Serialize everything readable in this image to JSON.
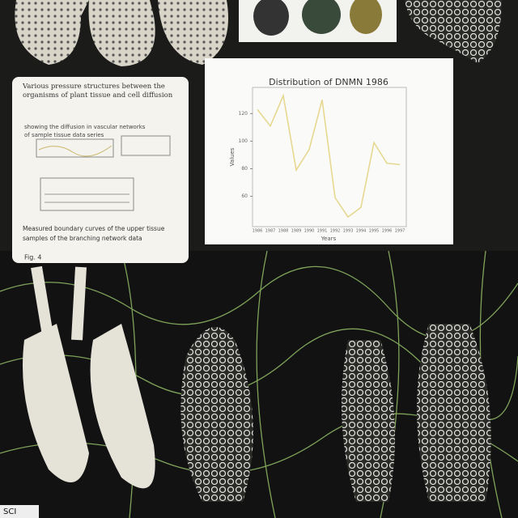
{
  "card": {
    "heading": "Various pressure structures between the organisms of plant tissue and cell diffusion",
    "lines": [
      "showing the diffusion in vascular networks",
      "of sample tissue data series"
    ],
    "footer": [
      "Measured boundary curves of the upper tissue",
      "samples of the branching network data"
    ],
    "caption": "Fig. 4"
  },
  "chart_data": {
    "type": "line",
    "title": "Distribution of DNMN 1986",
    "x_label": "Years",
    "y_label": "Values",
    "categories": [
      "1986",
      "1987",
      "1988",
      "1989",
      "1990",
      "1991",
      "1992",
      "1993",
      "1994",
      "1995",
      "1996",
      "1997"
    ],
    "series": [
      {
        "name": "Values",
        "color": "#e6d890",
        "values": [
          123,
          111,
          133,
          79,
          94,
          130,
          59,
          45,
          52,
          99,
          84,
          83
        ]
      }
    ],
    "ylim": [
      38,
      139
    ],
    "yticks": [
      60,
      80,
      100,
      120
    ],
    "grid": false
  },
  "corner": "SCI"
}
